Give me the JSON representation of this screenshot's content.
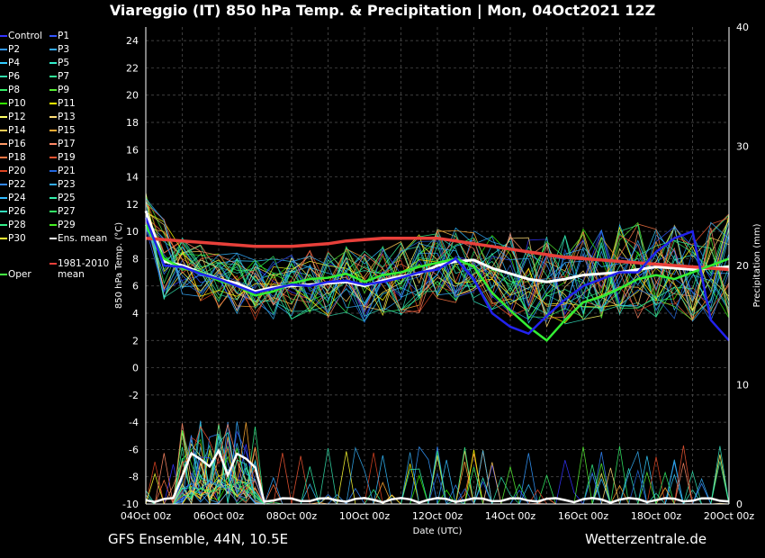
{
  "title": "Viareggio  (IT)  850 hPa Temp. & Precipitation | Mon, 04Oct2021 12Z",
  "footer_left": "GFS Ensemble, 44N, 10.5E",
  "footer_right": "Wetterzentrale.de",
  "chart_data": {
    "type": "line",
    "xlabel": "Date (UTC)",
    "ylabel_left": "850 hPa Temp. (°C)",
    "ylabel_right": "Precipitation (mm)",
    "ylim_left": [
      -10,
      25
    ],
    "ylim_right": [
      0,
      40
    ],
    "yticks_left": [
      "-10",
      "-8",
      "-6",
      "-4",
      "-2",
      "0",
      "2",
      "4",
      "6",
      "8",
      "10",
      "12",
      "14",
      "16",
      "18",
      "20",
      "22",
      "24"
    ],
    "yticks_right": [
      "0",
      "10",
      "20",
      "30",
      "40"
    ],
    "xticks": [
      "04Oct 00z",
      "06Oct 00z",
      "08Oct 00z",
      "10Oct 00z",
      "12Oct 00z",
      "14Oct 00z",
      "16Oct 00z",
      "18Oct 00z",
      "20Oct 00z"
    ],
    "grid": true,
    "x_days": [
      4,
      4.5,
      5,
      5.5,
      6,
      6.5,
      7,
      7.5,
      8,
      8.5,
      9,
      9.5,
      10,
      10.5,
      11,
      11.5,
      12,
      12.5,
      13,
      13.5,
      14,
      14.5,
      15,
      15.5,
      16,
      16.5,
      17,
      17.5,
      18,
      18.5,
      19,
      19.5,
      20
    ],
    "series": [
      {
        "name": "Ens. mean",
        "color": "#ffffff",
        "values": [
          11.5,
          7.8,
          7.5,
          7.0,
          6.5,
          6.2,
          5.6,
          5.9,
          6.0,
          6.1,
          6.2,
          6.3,
          6.0,
          6.4,
          6.7,
          6.9,
          7.5,
          7.8,
          7.9,
          7.3,
          6.9,
          6.5,
          6.3,
          6.5,
          6.8,
          6.9,
          7.0,
          7.2,
          7.4,
          7.3,
          7.2,
          7.3,
          7.4
        ]
      },
      {
        "name": "1981-2010 mean",
        "color": "#e8403a",
        "values": [
          9.5,
          9.4,
          9.3,
          9.2,
          9.1,
          9.0,
          8.9,
          8.9,
          8.9,
          9.0,
          9.1,
          9.3,
          9.4,
          9.5,
          9.5,
          9.5,
          9.5,
          9.3,
          9.1,
          8.9,
          8.7,
          8.5,
          8.3,
          8.1,
          8.0,
          7.9,
          7.8,
          7.7,
          7.6,
          7.5,
          7.4,
          7.3,
          7.2
        ]
      },
      {
        "name": "Oper",
        "color": "#33ee33",
        "values": [
          10.5,
          8.0,
          7.3,
          7.0,
          6.4,
          6.0,
          5.3,
          5.6,
          6.2,
          6.5,
          6.6,
          6.9,
          6.3,
          6.8,
          7.0,
          7.4,
          7.7,
          8.0,
          7.4,
          5.5,
          4.2,
          3.0,
          2.0,
          3.5,
          4.8,
          5.2,
          5.8,
          6.5,
          6.8,
          6.5,
          7.0,
          7.5,
          8.0
        ]
      },
      {
        "name": "Control",
        "color": "#2222ee",
        "values": [
          11.0,
          7.5,
          7.4,
          6.9,
          6.5,
          6.0,
          5.5,
          5.8,
          6.1,
          6.0,
          6.3,
          6.4,
          6.1,
          6.3,
          6.6,
          7.0,
          7.2,
          8.0,
          6.5,
          4.0,
          3.0,
          2.5,
          3.8,
          5.0,
          6.0,
          6.5,
          7.0,
          7.0,
          8.5,
          9.5,
          10.0,
          3.5,
          2.0
        ]
      }
    ]
  },
  "legend": {
    "col1": [
      {
        "label": "Control",
        "color": "#3333ff"
      },
      {
        "label": "P2",
        "color": "#3399ff"
      },
      {
        "label": "P4",
        "color": "#33ccff"
      },
      {
        "label": "P6",
        "color": "#33ddaa"
      },
      {
        "label": "P8",
        "color": "#33ee66"
      },
      {
        "label": "P10",
        "color": "#33ee00"
      },
      {
        "label": "P12",
        "color": "#ffff66"
      },
      {
        "label": "P14",
        "color": "#ffcc55"
      },
      {
        "label": "P16",
        "color": "#ff9966"
      },
      {
        "label": "P18",
        "color": "#ff7744"
      },
      {
        "label": "P20",
        "color": "#dd4422"
      },
      {
        "label": "P22",
        "color": "#3388ff"
      },
      {
        "label": "P24",
        "color": "#33bbff"
      },
      {
        "label": "P26",
        "color": "#33ddbb"
      },
      {
        "label": "P28",
        "color": "#33ee88"
      },
      {
        "label": "P30",
        "color": "#ffff33"
      }
    ],
    "col2": [
      {
        "label": "P1",
        "color": "#3355ff"
      },
      {
        "label": "P3",
        "color": "#33aaff"
      },
      {
        "label": "P5",
        "color": "#33eecc"
      },
      {
        "label": "P7",
        "color": "#33ee99"
      },
      {
        "label": "P9",
        "color": "#55ee33"
      },
      {
        "label": "P11",
        "color": "#ffff00"
      },
      {
        "label": "P13",
        "color": "#ffdd77"
      },
      {
        "label": "P15",
        "color": "#ffaa33"
      },
      {
        "label": "P17",
        "color": "#ff8866"
      },
      {
        "label": "P19",
        "color": "#ee5533"
      },
      {
        "label": "P21",
        "color": "#2266dd"
      },
      {
        "label": "P23",
        "color": "#33aaee"
      },
      {
        "label": "P25",
        "color": "#33eeaa"
      },
      {
        "label": "P27",
        "color": "#33ee66"
      },
      {
        "label": "P29",
        "color": "#44ee22"
      },
      {
        "label": "Ens. mean",
        "color": "#ffffff"
      }
    ],
    "oper": {
      "label": "Oper",
      "color": "#44ff44"
    },
    "clim_line1": "1981-2010",
    "clim_line2": "mean",
    "clim_color": "#e8403a"
  }
}
